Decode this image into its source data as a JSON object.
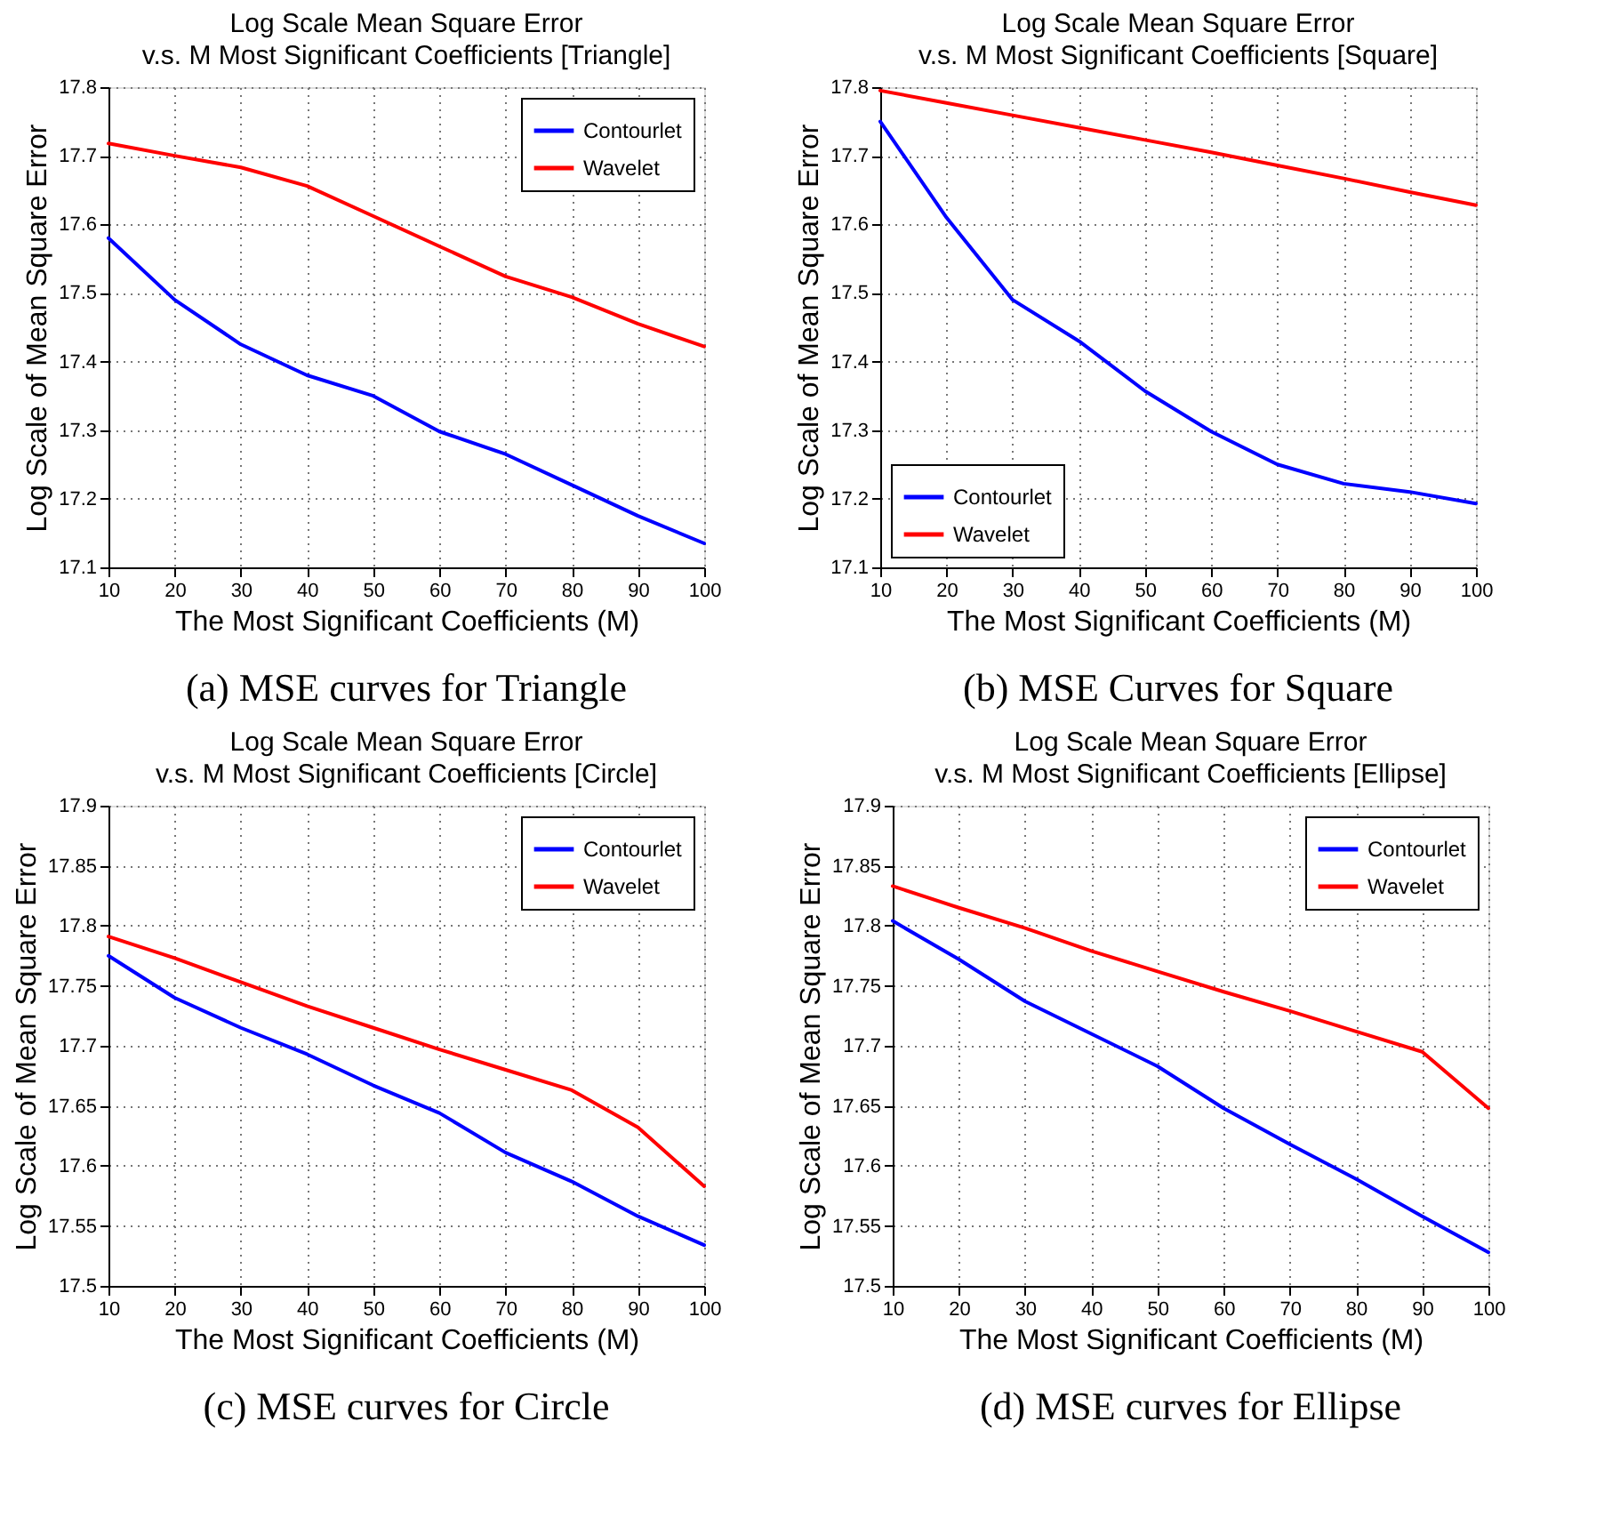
{
  "chart_data": [
    {
      "type": "line",
      "title": "Log Scale Mean Square Error",
      "subtitle": "v.s. M Most Significant Coefficients [Triangle]",
      "xlabel": "The Most Significant Coefficients (M)",
      "ylabel": "Log Scale of Mean Square Error",
      "annotations": [
        "(a) MSE curves for Triangle"
      ],
      "x": [
        10,
        20,
        30,
        40,
        50,
        60,
        70,
        80,
        90,
        100
      ],
      "xlim": [
        10,
        100
      ],
      "xticks": [
        10,
        20,
        30,
        40,
        50,
        60,
        70,
        80,
        90,
        100
      ],
      "ylim": [
        17.1,
        17.8
      ],
      "yticks": [
        17.1,
        17.2,
        17.3,
        17.4,
        17.5,
        17.6,
        17.7,
        17.8
      ],
      "grid": true,
      "legend": "top right",
      "line_style": "solid",
      "series": [
        {
          "name": "Contourlet",
          "color": "#0000ff",
          "values": [
            17.58,
            17.49,
            17.425,
            17.38,
            17.35,
            17.298,
            17.265,
            17.22,
            17.175,
            17.135
          ]
        },
        {
          "name": "Wavelet",
          "color": "#ff0000",
          "values": [
            17.718,
            17.7,
            17.683,
            17.656,
            17.612,
            17.568,
            17.524,
            17.494,
            17.455,
            17.422
          ]
        }
      ]
    },
    {
      "type": "line",
      "title": "Log Scale Mean Square Error",
      "subtitle": "v.s. M Most Significant Coefficients [Square]",
      "xlabel": "The Most Significant Coefficients (M)",
      "ylabel": "Log Scale of Mean Square Error",
      "annotations": [
        "(b) MSE Curves for Square"
      ],
      "x": [
        10,
        20,
        30,
        40,
        50,
        60,
        70,
        80,
        90,
        100
      ],
      "xlim": [
        10,
        100
      ],
      "xticks": [
        10,
        20,
        30,
        40,
        50,
        60,
        70,
        80,
        90,
        100
      ],
      "ylim": [
        17.1,
        17.8
      ],
      "yticks": [
        17.1,
        17.2,
        17.3,
        17.4,
        17.5,
        17.6,
        17.7,
        17.8
      ],
      "grid": true,
      "legend": "bottom left",
      "line_style": "solid",
      "series": [
        {
          "name": "Contourlet",
          "color": "#0000ff",
          "values": [
            17.75,
            17.61,
            17.49,
            17.43,
            17.357,
            17.298,
            17.25,
            17.222,
            17.21,
            17.193
          ]
        },
        {
          "name": "Wavelet",
          "color": "#ff0000",
          "values": [
            17.795,
            17.777,
            17.759,
            17.741,
            17.723,
            17.705,
            17.686,
            17.667,
            17.647,
            17.628
          ]
        }
      ]
    },
    {
      "type": "line",
      "title": "Log Scale Mean Square Error",
      "subtitle": "v.s. M Most Significant Coefficients [Circle]",
      "xlabel": "The Most Significant Coefficients (M)",
      "ylabel": "Log Scale of Mean Square Error",
      "annotations": [
        "(c) MSE curves for Circle"
      ],
      "x": [
        10,
        20,
        30,
        40,
        50,
        60,
        70,
        80,
        90,
        100
      ],
      "xlim": [
        10,
        100
      ],
      "xticks": [
        10,
        20,
        30,
        40,
        50,
        60,
        70,
        80,
        90,
        100
      ],
      "ylim": [
        17.5,
        17.9
      ],
      "yticks": [
        17.5,
        17.55,
        17.6,
        17.65,
        17.7,
        17.75,
        17.8,
        17.85,
        17.9
      ],
      "grid": true,
      "legend": "top right",
      "line_style": "solid",
      "series": [
        {
          "name": "Contourlet",
          "color": "#0000ff",
          "values": [
            17.775,
            17.74,
            17.715,
            17.693,
            17.667,
            17.644,
            17.611,
            17.587,
            17.558,
            17.534
          ]
        },
        {
          "name": "Wavelet",
          "color": "#ff0000",
          "values": [
            17.791,
            17.773,
            17.753,
            17.733,
            17.715,
            17.697,
            17.68,
            17.663,
            17.632,
            17.583
          ]
        }
      ]
    },
    {
      "type": "line",
      "title": "Log Scale Mean Square Error",
      "subtitle": "v.s. M Most Significant Coefficients [Ellipse]",
      "xlabel": "The Most Significant Coefficients (M)",
      "ylabel": "Log Scale of Mean Square Error",
      "annotations": [
        "(d) MSE curves for Ellipse"
      ],
      "x": [
        10,
        20,
        30,
        40,
        50,
        60,
        70,
        80,
        90,
        100
      ],
      "xlim": [
        10,
        100
      ],
      "xticks": [
        10,
        20,
        30,
        40,
        50,
        60,
        70,
        80,
        90,
        100
      ],
      "ylim": [
        17.5,
        17.9
      ],
      "yticks": [
        17.5,
        17.55,
        17.6,
        17.65,
        17.7,
        17.75,
        17.8,
        17.85,
        17.9
      ],
      "grid": true,
      "legend": "top right",
      "line_style": "solid",
      "series": [
        {
          "name": "Contourlet",
          "color": "#0000ff",
          "values": [
            17.804,
            17.772,
            17.737,
            17.71,
            17.683,
            17.648,
            17.618,
            17.589,
            17.558,
            17.528
          ]
        },
        {
          "name": "Wavelet",
          "color": "#ff0000",
          "values": [
            17.833,
            17.815,
            17.798,
            17.779,
            17.762,
            17.745,
            17.729,
            17.712,
            17.695,
            17.648
          ]
        }
      ]
    }
  ]
}
